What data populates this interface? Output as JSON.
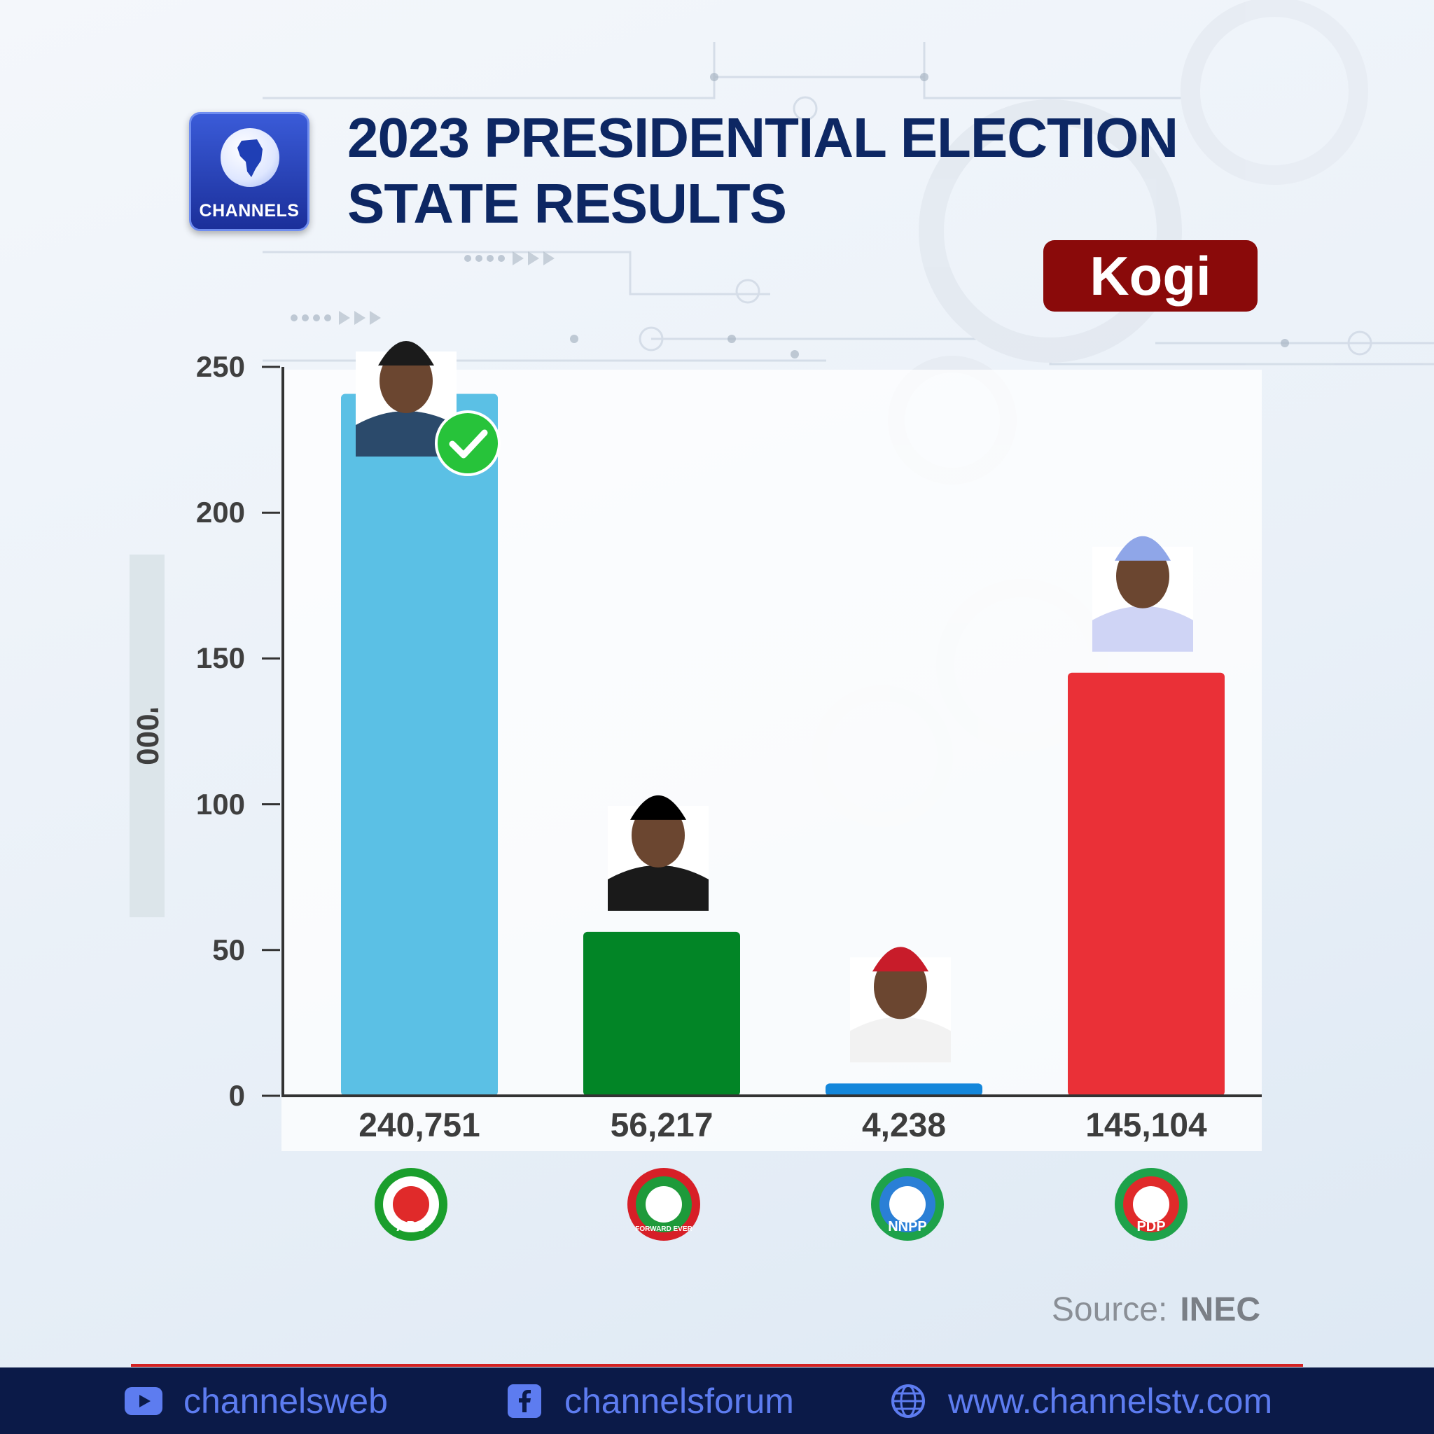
{
  "header": {
    "brand": "CHANNELS",
    "title_line1": "2023 PRESIDENTIAL ELECTION",
    "title_line2": "STATE RESULTS",
    "state": "Kogi"
  },
  "chart_data": {
    "type": "bar",
    "categories": [
      "APC",
      "LP",
      "NNPP",
      "PDP"
    ],
    "values": [
      240751,
      56217,
      4238,
      145104
    ],
    "value_labels": [
      "240,751",
      "56,217",
      "4,238",
      "145,104"
    ],
    "colors": [
      "#5bc0e5",
      "#028526",
      "#1487db",
      "#ea3037"
    ],
    "ylabel": "'000",
    "yticks": [
      "0",
      "50",
      "100",
      "150",
      "200",
      "250"
    ],
    "ylim": [
      0,
      250000
    ],
    "winner": "APC"
  },
  "parties": [
    {
      "name": "APC",
      "logo_text": "APC",
      "logo_colors": [
        "#1a9e2c",
        "#ffffff",
        "#e02a2a",
        "#49b6ea"
      ]
    },
    {
      "name": "LP",
      "logo_text": "FORWARD EVER",
      "logo_colors": [
        "#d71f27",
        "#1e9a3a",
        "#ffffff"
      ]
    },
    {
      "name": "NNPP",
      "logo_text": "NNPP",
      "logo_colors": [
        "#1ea24a",
        "#2a7fd6",
        "#ffffff"
      ]
    },
    {
      "name": "PDP",
      "logo_text": "PDP",
      "logo_colors": [
        "#1ea24a",
        "#e02a2a",
        "#ffffff"
      ]
    }
  ],
  "source": {
    "label": "Source:",
    "value": "INEC"
  },
  "footer": {
    "youtube": "channelsweb",
    "facebook": "channelsforum",
    "website": "www.channelstv.com"
  }
}
